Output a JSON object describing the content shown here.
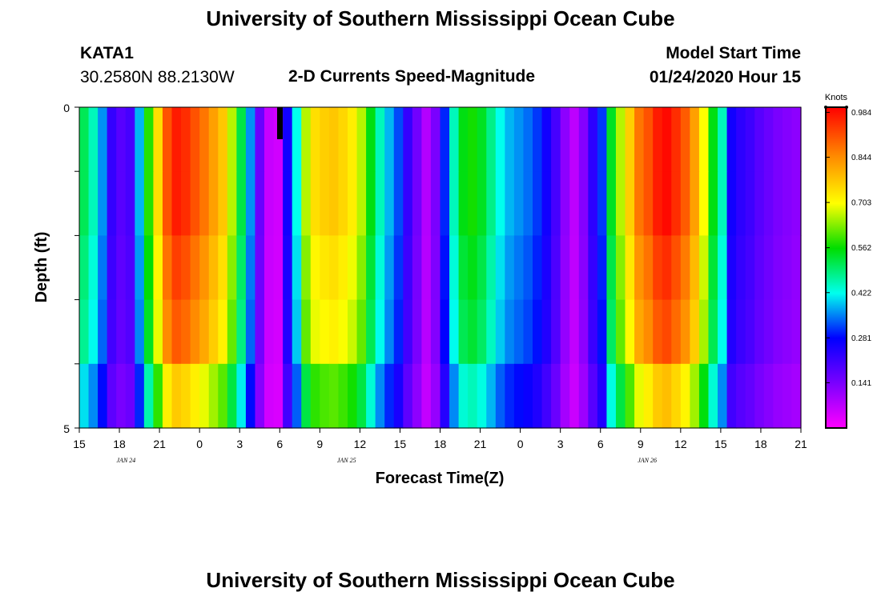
{
  "header": {
    "title": "University of Southern Mississippi Ocean Cube",
    "station_id": "KATA1",
    "coords": "30.2580N 88.2130W",
    "plot_title": "2-D Currents Speed-Magnitude",
    "start_label": "Model Start Time",
    "start_value": "01/24/2020 Hour 15"
  },
  "footer": {
    "title": "University of Southern Mississippi Ocean Cube"
  },
  "chart_data": {
    "type": "heatmap",
    "title": "2-D Currents Speed-Magnitude",
    "xlabel": "Forecast Time(Z)",
    "ylabel": "Depth (ft)",
    "ylim": [
      0,
      5
    ],
    "y_tick_labels": [
      "0",
      "5"
    ],
    "x_tick_labels": [
      "15",
      "18",
      "21",
      "0",
      "3",
      "6",
      "9",
      "12",
      "15",
      "18",
      "21",
      "0",
      "3",
      "6",
      "9",
      "12",
      "15",
      "18",
      "21"
    ],
    "date_labels": [
      {
        "label": "JAN 24",
        "hour_index": 3.5
      },
      {
        "label": "JAN 25",
        "hour_index": 20
      },
      {
        "label": "JAN 26",
        "hour_index": 42.5
      }
    ],
    "x_range_hours": [
      0,
      54
    ],
    "depth_levels": 5,
    "surface_profile": [
      0.51,
      0.45,
      0.36,
      0.22,
      0.18,
      0.2,
      0.38,
      0.58,
      0.74,
      0.91,
      0.97,
      0.95,
      0.91,
      0.87,
      0.82,
      0.77,
      0.66,
      0.52,
      0.36,
      0.16,
      0.06,
      0.05,
      0.26,
      0.42,
      0.66,
      0.74,
      0.76,
      0.77,
      0.75,
      0.72,
      0.66,
      0.55,
      0.45,
      0.38,
      0.32,
      0.22,
      0.15,
      0.08,
      0.14,
      0.3,
      0.45,
      0.55,
      0.57,
      0.54,
      0.48,
      0.42,
      0.38,
      0.36,
      0.34,
      0.31,
      0.26,
      0.2,
      0.12,
      0.07,
      0.13,
      0.23,
      0.31,
      0.54,
      0.66,
      0.76,
      0.87,
      0.91,
      0.97,
      0.99,
      0.95,
      0.9,
      0.82,
      0.7,
      0.55,
      0.45,
      0.26,
      0.23,
      0.21,
      0.18,
      0.16,
      0.14,
      0.13,
      0.12
    ],
    "depth_factors": [
      1.0,
      1.0,
      0.96,
      0.93,
      0.79
    ],
    "units": "Knots",
    "colorbar": {
      "ticks": [
        "0.984",
        "0.844",
        "0.703",
        "0.562",
        "0.422",
        "0.281",
        "0.141"
      ],
      "min": 0.0,
      "max": 1.0
    }
  }
}
